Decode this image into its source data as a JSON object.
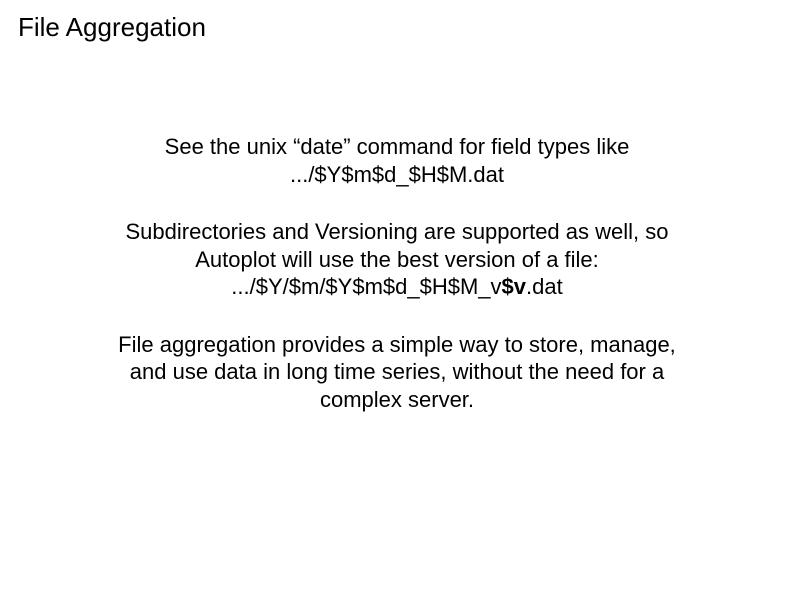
{
  "title": "File Aggregation",
  "content": {
    "para1_line1": "See the unix “date” command for field types like",
    "para1_line2": ".../$Y$m$d_$H$M.dat",
    "para2_line1": "Subdirectories and Versioning are supported as well, so",
    "para2_line2": "Autoplot will use the best version of a file:",
    "para2_line3_prefix": ".../$Y/$m/$Y$m$d_$H$M_v",
    "para2_line3_bold": "$v",
    "para2_line3_suffix": ".dat",
    "para3_line1": "File aggregation provides a simple way to store, manage,",
    "para3_line2": "and use data in long time series, without the need for a",
    "para3_line3": "complex server."
  },
  "style": {
    "background_color": "#ffffff",
    "text_color": "#000000",
    "title_fontsize": 26,
    "body_fontsize": 22,
    "font_family": "Arial"
  }
}
